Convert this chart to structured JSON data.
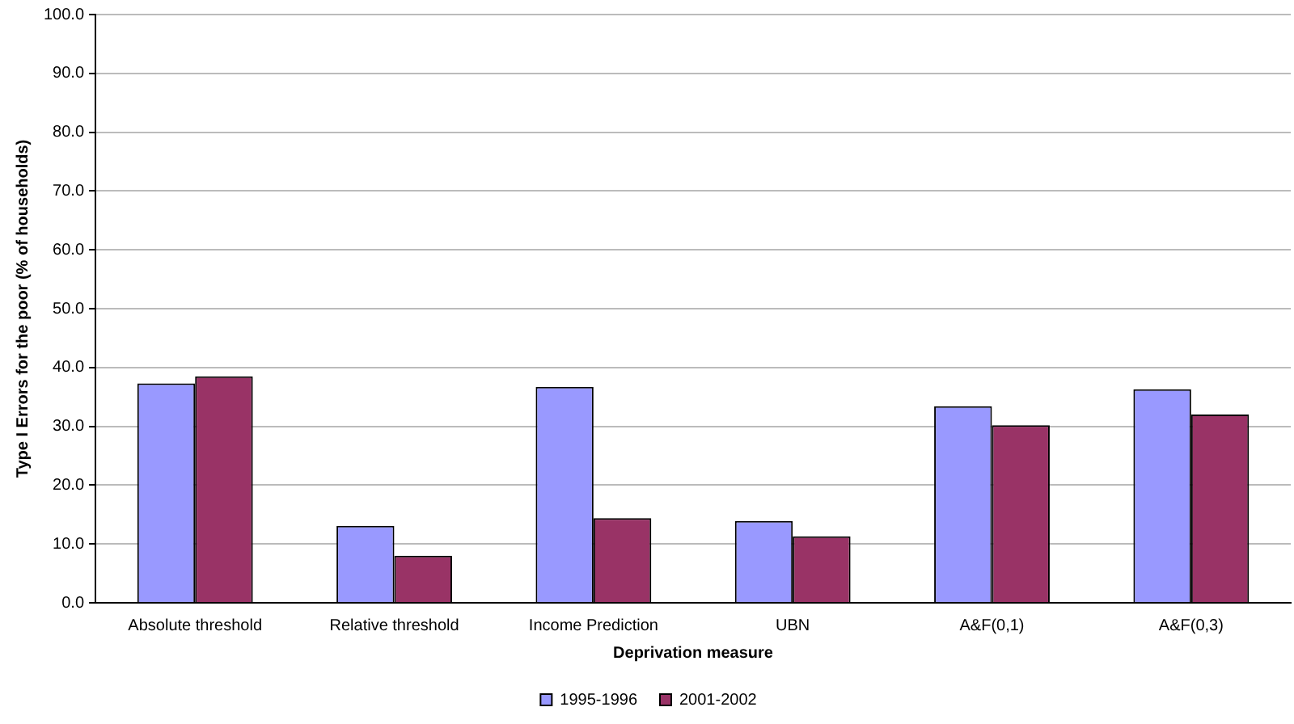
{
  "chart_data": {
    "type": "bar",
    "xlabel": "Deprivation measure",
    "ylabel": "Type I Errors for the poor (% of households)",
    "categories": [
      "Absolute threshold",
      "Relative threshold",
      "Income Prediction",
      "UBN",
      "A&F(0,1)",
      "A&F(0,3)"
    ],
    "series": [
      {
        "name": "1995-1996",
        "color": "#9999ff",
        "values": [
          37.3,
          13.1,
          36.7,
          13.9,
          33.4,
          36.3
        ]
      },
      {
        "name": "2001-2002",
        "color": "#993366",
        "values": [
          38.5,
          8.0,
          14.4,
          11.3,
          30.2,
          32.0
        ]
      }
    ],
    "ylim": [
      0,
      100
    ],
    "yticks": [
      {
        "value": 0,
        "label": "0.0"
      },
      {
        "value": 10,
        "label": "10.0"
      },
      {
        "value": 20,
        "label": "20.0"
      },
      {
        "value": 30,
        "label": "30.0"
      },
      {
        "value": 40,
        "label": "40.0"
      },
      {
        "value": 50,
        "label": "50.0"
      },
      {
        "value": 60,
        "label": "60.0"
      },
      {
        "value": 70,
        "label": "70.0"
      },
      {
        "value": 80,
        "label": "80.0"
      },
      {
        "value": 90,
        "label": "90.0"
      },
      {
        "value": 100,
        "label": "100.0"
      }
    ],
    "grid": "y",
    "legend": "bottom"
  }
}
